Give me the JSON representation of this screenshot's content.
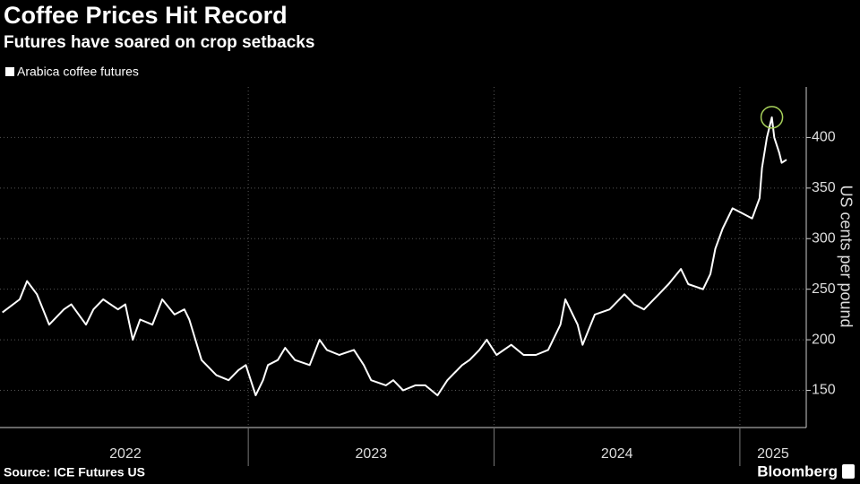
{
  "chart_data": {
    "type": "line",
    "title": "Coffee Prices Hit Record",
    "subtitle": "Futures have soared on crop setbacks",
    "y_axis_label": "US cents per pound",
    "source": "Source: ICE Futures US",
    "brand": "Bloomberg",
    "xlim": [
      2021.99,
      2025.27
    ],
    "xticks": [
      {
        "value": 2022,
        "label": "2022"
      },
      {
        "value": 2023,
        "label": "2023"
      },
      {
        "value": 2024,
        "label": "2024"
      },
      {
        "value": 2025,
        "label": "2025"
      }
    ],
    "ylim": [
      115,
      450
    ],
    "yticks": [
      150,
      200,
      250,
      300,
      350,
      400
    ],
    "grid": true,
    "highlight_color": "#a6d05a",
    "series": [
      {
        "name": "Arabica coffee futures",
        "color": "#ffffff",
        "x": [
          2022.0,
          2022.07,
          2022.1,
          2022.14,
          2022.19,
          2022.25,
          2022.28,
          2022.34,
          2022.37,
          2022.41,
          2022.47,
          2022.5,
          2022.53,
          2022.56,
          2022.61,
          2022.65,
          2022.7,
          2022.74,
          2022.76,
          2022.81,
          2022.87,
          2022.92,
          2022.96,
          2022.99,
          2023.03,
          2023.06,
          2023.08,
          2023.12,
          2023.15,
          2023.19,
          2023.25,
          2023.29,
          2023.32,
          2023.37,
          2023.43,
          2023.47,
          2023.5,
          2023.56,
          2023.59,
          2023.63,
          2023.68,
          2023.72,
          2023.77,
          2023.81,
          2023.87,
          2023.9,
          2023.94,
          2023.97,
          2024.01,
          2024.07,
          2024.12,
          2024.17,
          2024.22,
          2024.27,
          2024.29,
          2024.34,
          2024.36,
          2024.41,
          2024.47,
          2024.53,
          2024.57,
          2024.61,
          2024.67,
          2024.71,
          2024.76,
          2024.79,
          2024.85,
          2024.88,
          2024.9,
          2024.93,
          2024.97,
          2025.01,
          2025.05,
          2025.08,
          2025.09,
          2025.11,
          2025.13,
          2025.14,
          2025.16,
          2025.17,
          2025.19
        ],
        "values": [
          227,
          240,
          258,
          245,
          215,
          230,
          235,
          215,
          230,
          240,
          230,
          235,
          200,
          220,
          215,
          240,
          225,
          230,
          220,
          180,
          165,
          160,
          170,
          175,
          145,
          160,
          175,
          180,
          192,
          180,
          175,
          200,
          190,
          185,
          190,
          175,
          160,
          155,
          160,
          150,
          155,
          155,
          145,
          160,
          175,
          180,
          190,
          200,
          185,
          195,
          185,
          185,
          190,
          215,
          240,
          215,
          195,
          225,
          230,
          245,
          235,
          230,
          245,
          255,
          270,
          255,
          250,
          265,
          290,
          310,
          330,
          325,
          320,
          340,
          370,
          400,
          420,
          400,
          385,
          375,
          378
        ]
      }
    ]
  }
}
